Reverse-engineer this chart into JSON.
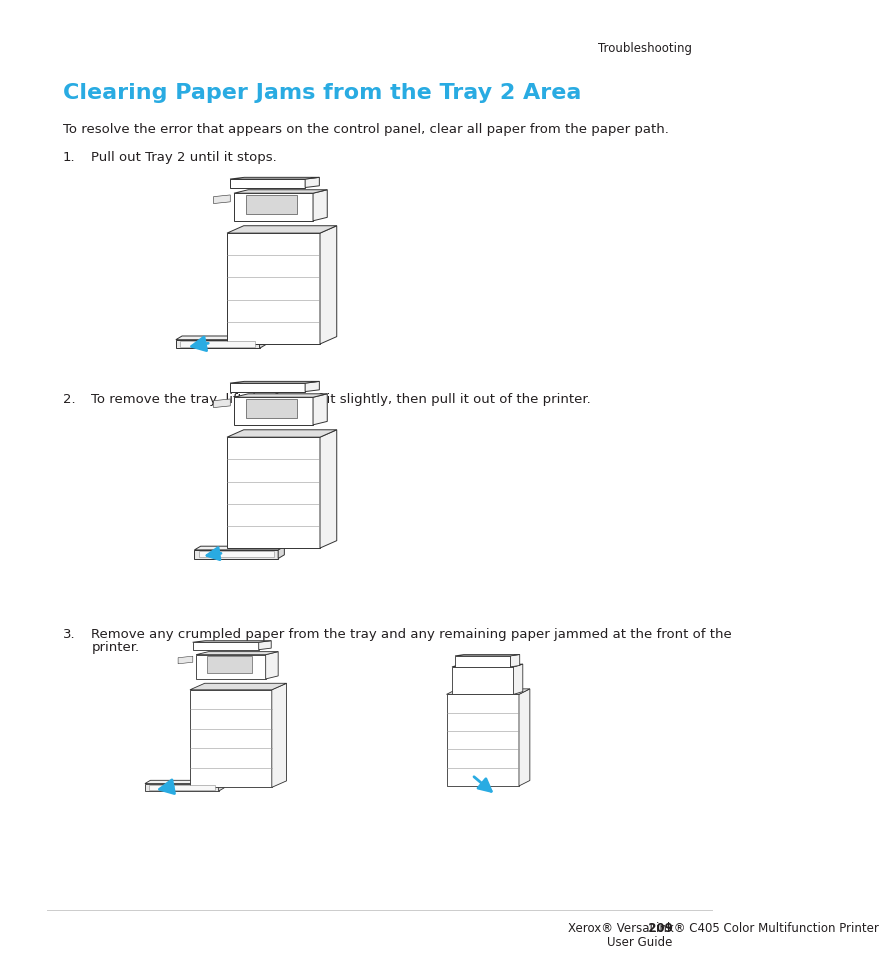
{
  "bg_color": "#ffffff",
  "header_text": "Troubleshooting",
  "header_color": "#231f20",
  "header_fontsize": 8.5,
  "title_text": "Clearing Paper Jams from the Tray 2 Area",
  "title_color": "#29abe2",
  "title_fontsize": 16,
  "intro_text": "To resolve the error that appears on the control panel, clear all paper from the paper path.",
  "intro_fontsize": 9.5,
  "step1_text": "Pull out Tray 2 until it stops.",
  "step2_text": "To remove the tray, lift the front of it slightly, then pull it out of the printer.",
  "step3_text": "Remove any crumpled paper from the tray and any remaining paper jammed at the front of the printer.",
  "step_fontsize": 9.5,
  "footer_line1": "Xerox® VersaLink® C405 Color Multifunction Printer",
  "footer_page": "209",
  "footer_line2": "User Guide",
  "footer_fontsize": 8.5,
  "footer_color": "#231f20",
  "arrow_color": "#29abe2",
  "line_color": "#cccccc",
  "text_color": "#231f20"
}
